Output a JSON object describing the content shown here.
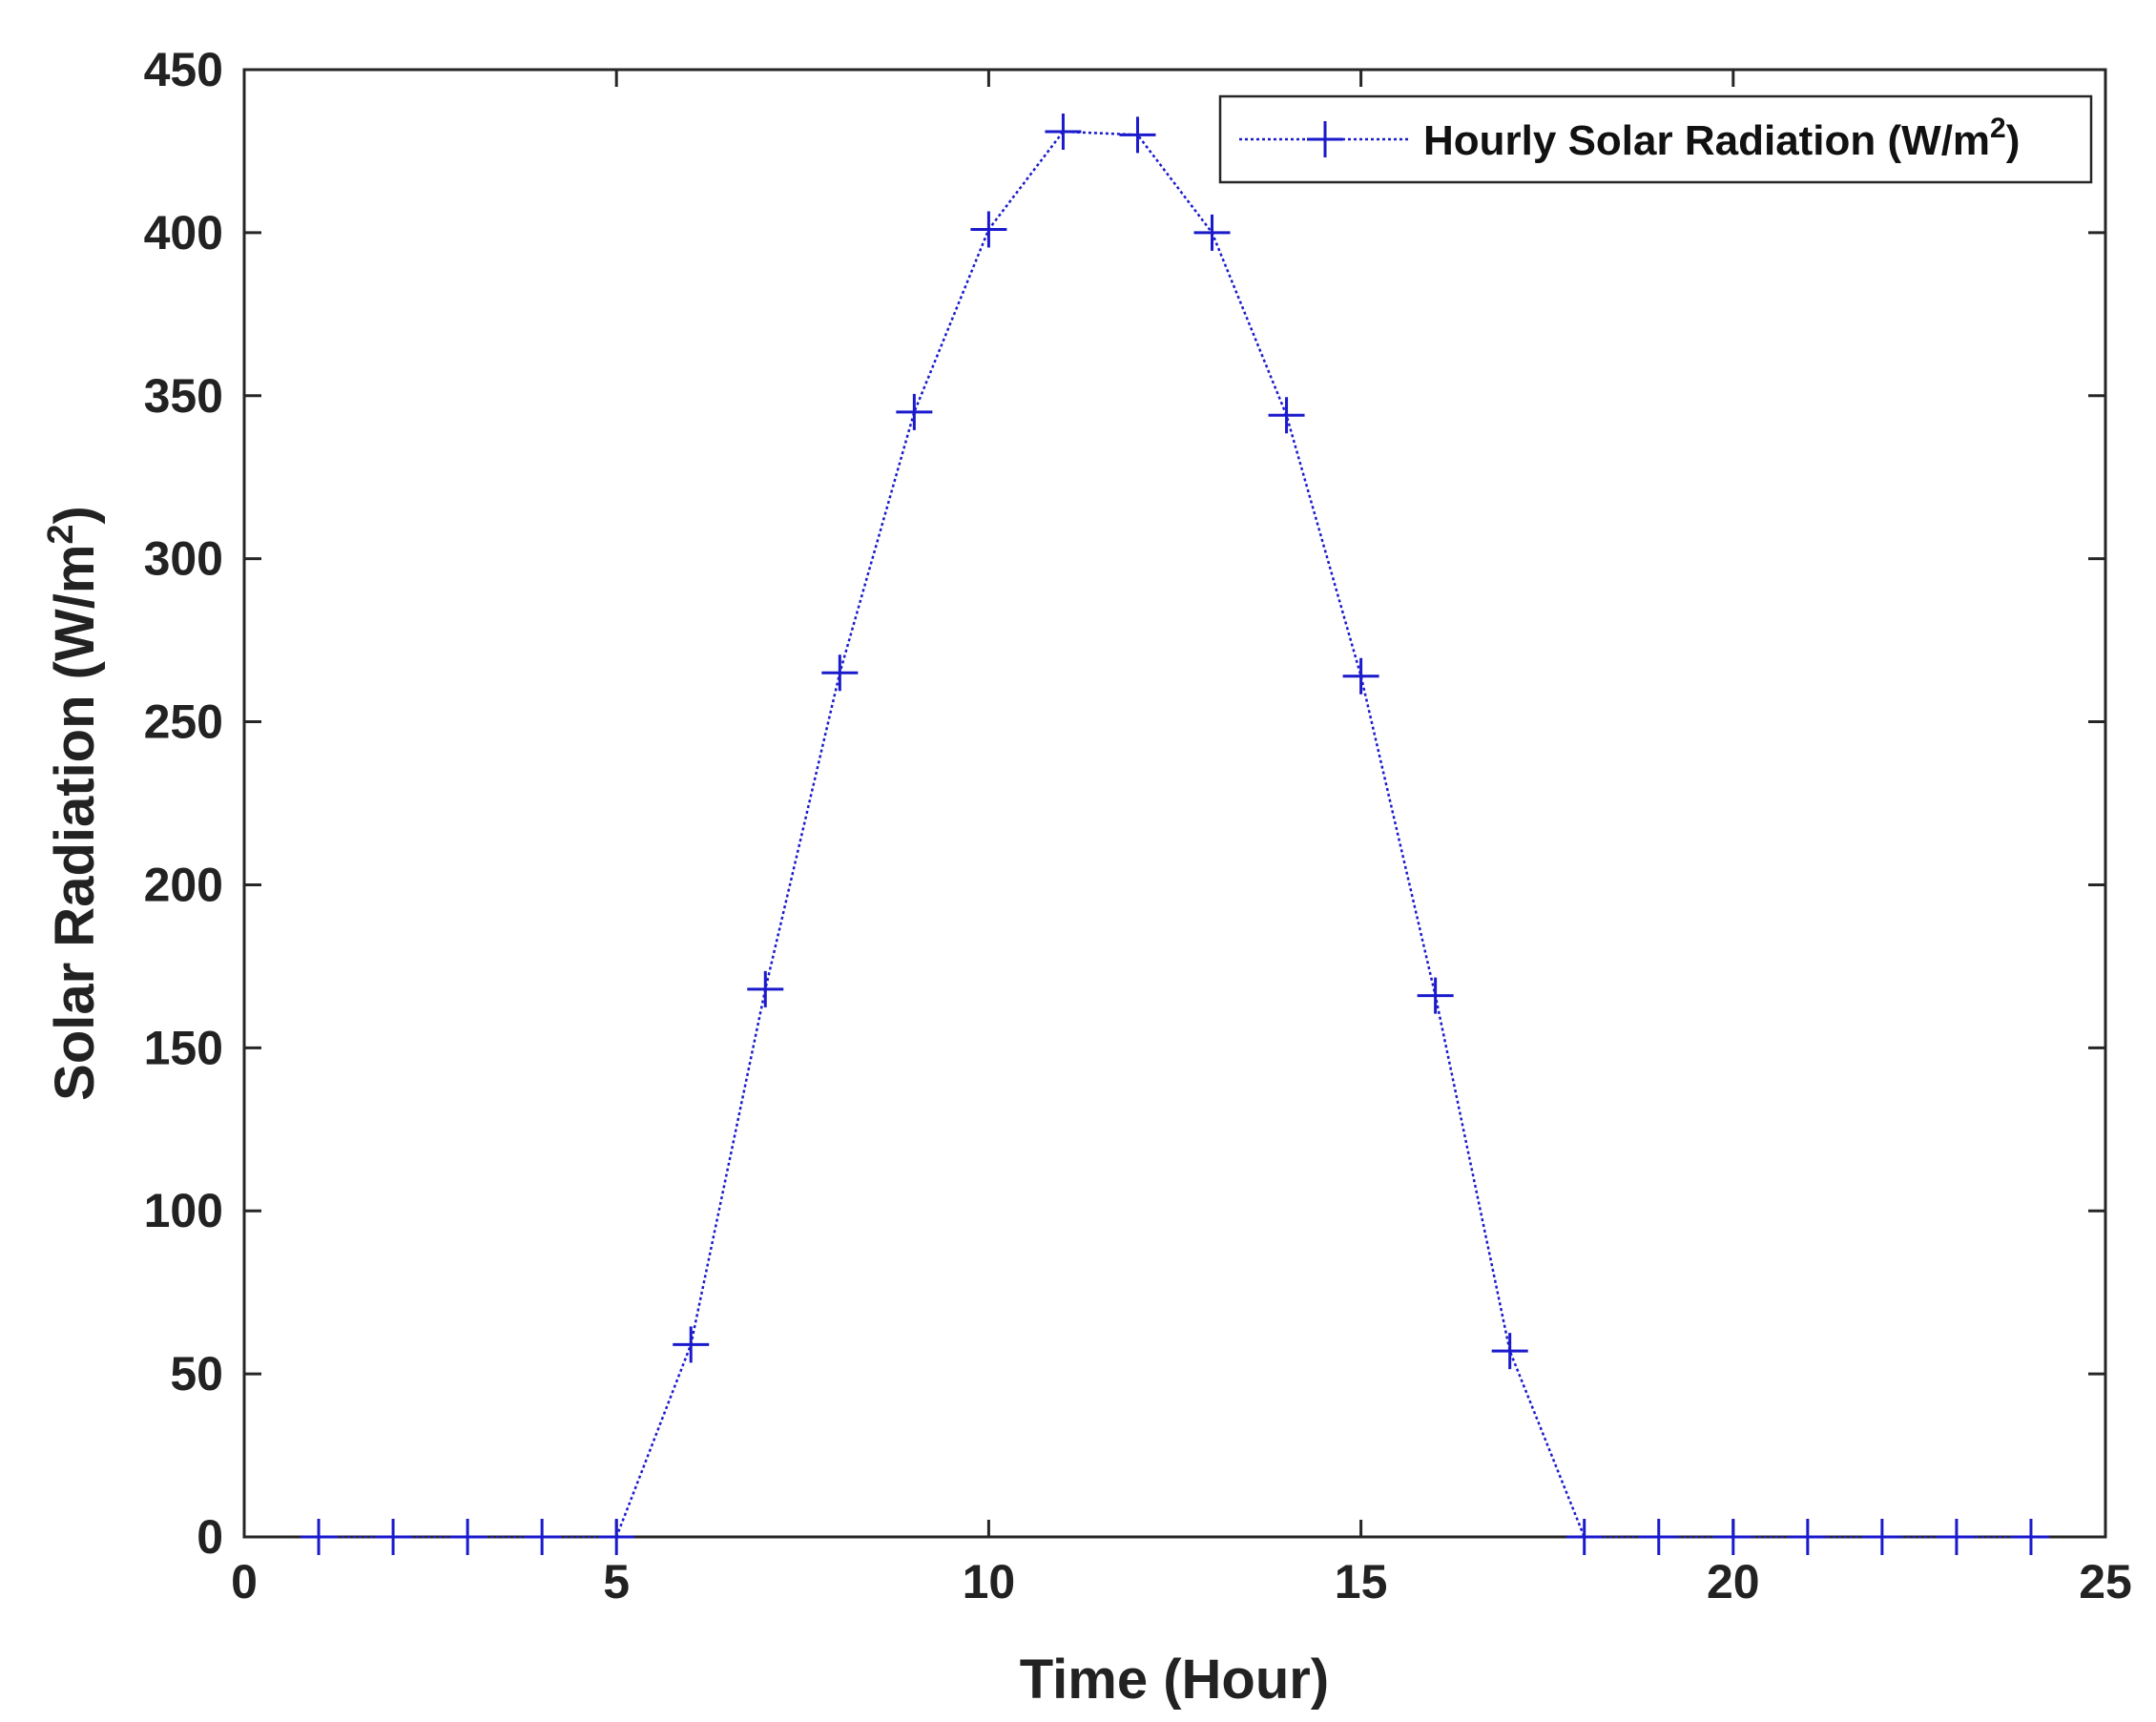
{
  "chart_data": {
    "type": "line",
    "title": "",
    "xlabel": "Time (Hour)",
    "ylabel": {
      "text": "Solar Radiation (W/m",
      "sup": "2",
      "close": ")"
    },
    "xlim": [
      0,
      25
    ],
    "ylim": [
      0,
      450
    ],
    "xticks": [
      0,
      5,
      10,
      15,
      20,
      25
    ],
    "yticks": [
      0,
      50,
      100,
      150,
      200,
      250,
      300,
      350,
      400,
      450
    ],
    "grid": false,
    "legend_position": "top-right",
    "series": [
      {
        "name": {
          "text": "Hourly Solar Radiation (W/m",
          "sup": "2",
          "close": ")"
        },
        "color": "#1a1acc",
        "marker": "plus",
        "line_style": "dotted",
        "x": [
          1,
          2,
          3,
          4,
          5,
          6,
          7,
          8,
          9,
          10,
          11,
          12,
          13,
          14,
          15,
          16,
          17,
          18,
          19,
          20,
          21,
          22,
          23,
          24
        ],
        "y": [
          0,
          0,
          0,
          0,
          0,
          59,
          168,
          265,
          345,
          401,
          431,
          430,
          400,
          344,
          264,
          166,
          57,
          0,
          0,
          0,
          0,
          0,
          0,
          0
        ]
      }
    ]
  }
}
